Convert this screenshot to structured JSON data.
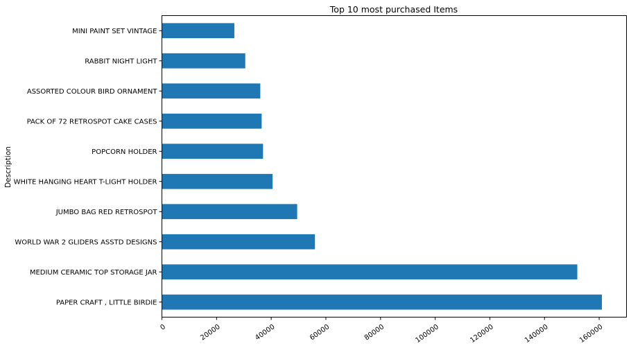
{
  "chart_data": {
    "type": "bar",
    "orientation": "horizontal",
    "title": "Top 10 most purchased Items",
    "xlabel": "",
    "ylabel": "Description",
    "xlim": [
      0,
      170000
    ],
    "x_ticks": [
      0,
      20000,
      40000,
      60000,
      80000,
      100000,
      120000,
      140000,
      160000
    ],
    "x_tick_labels": [
      "0",
      "20000",
      "40000",
      "60000",
      "80000",
      "100000",
      "120000",
      "140000",
      "160000"
    ],
    "x_tick_rotation": 35,
    "grid": false,
    "bar_color": "#1f77b4",
    "categories": [
      "PAPER CRAFT , LITTLE BIRDIE",
      "MEDIUM CERAMIC TOP STORAGE JAR",
      "WORLD WAR 2 GLIDERS ASSTD DESIGNS",
      "JUMBO BAG RED RETROSPOT",
      "WHITE HANGING HEART T-LIGHT HOLDER",
      "POPCORN HOLDER",
      "PACK OF 72 RETROSPOT CAKE CASES",
      "ASSORTED COLOUR BIRD ORNAMENT",
      "RABBIT NIGHT LIGHT",
      "MINI PAINT SET VINTAGE "
    ],
    "values": [
      161000,
      152000,
      56000,
      49500,
      40500,
      37000,
      36500,
      36000,
      30500,
      26500
    ]
  }
}
